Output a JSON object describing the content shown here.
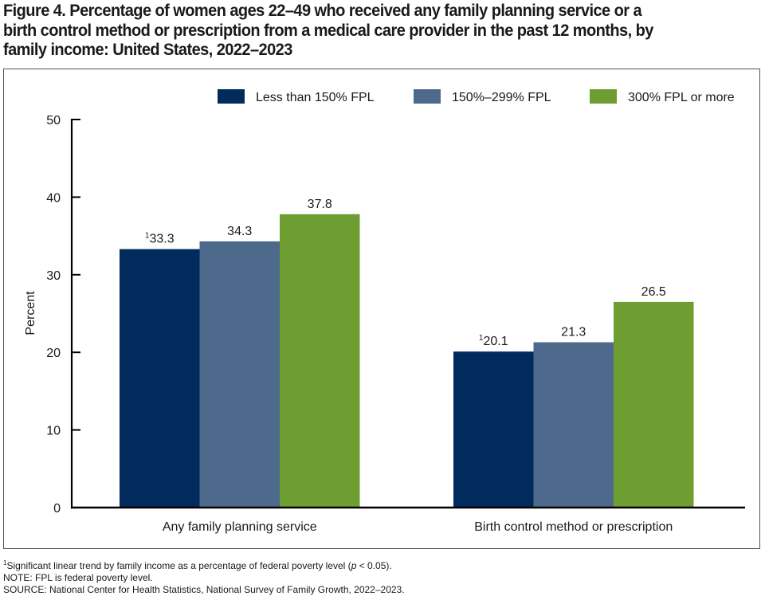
{
  "title_lines": [
    "Figure 4. Percentage of women ages 22–49 who received any family planning service or a",
    "birth control method or prescription from a medical care provider in the past 12 months, by",
    "family income: United States, 2022–2023"
  ],
  "chart_data": {
    "type": "bar",
    "title": "Figure 4. Percentage of women ages 22–49 who received any family planning service or a birth control method or prescription from a medical care provider in the past 12 months, by family income: United States, 2022–2023",
    "categories": [
      "Any family planning service",
      "Birth control method or prescription"
    ],
    "series": [
      {
        "name": "Less than 150% FPL",
        "color": "#002b5c",
        "values": [
          33.3,
          20.1
        ],
        "labels": [
          "33.3",
          "20.1"
        ],
        "label_prefix": [
          "1",
          "1"
        ]
      },
      {
        "name": "150%–299% FPL",
        "color": "#4d6a8d",
        "values": [
          34.3,
          21.3
        ],
        "labels": [
          "34.3",
          "21.3"
        ],
        "label_prefix": [
          "",
          ""
        ]
      },
      {
        "name": "300% FPL or more",
        "color": "#6e9e32",
        "values": [
          37.8,
          26.5
        ],
        "labels": [
          "37.8",
          "26.5"
        ],
        "label_prefix": [
          "",
          ""
        ]
      }
    ],
    "xlabel": "",
    "ylabel": "Percent",
    "ylim": [
      0,
      50
    ],
    "yticks": [
      0,
      10,
      20,
      30,
      40,
      50
    ],
    "grid": false,
    "legend_position": "top-right"
  },
  "footnotes": {
    "footnote_marker": "1",
    "footnote_text": "Significant linear trend by family income as a percentage of federal poverty level (",
    "footnote_p": "p",
    "footnote_tail": " < 0.05).",
    "note": "NOTE: FPL is federal poverty level.",
    "source": "SOURCE: National Center for Health Statistics, National Survey of Family Growth, 2022–2023."
  }
}
